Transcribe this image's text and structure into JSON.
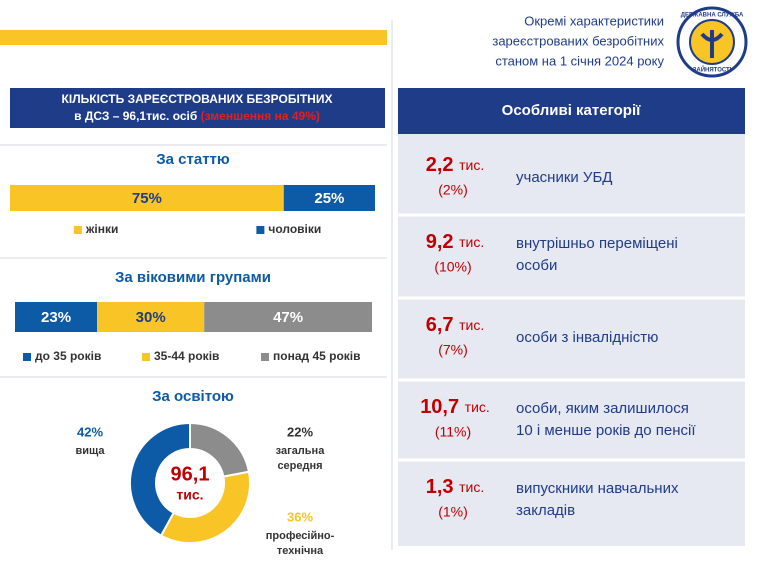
{
  "header": {
    "title_lines": [
      "Окремі характеристики",
      "зареєстрованих безробітних",
      "станом на 1 січня 2024 року"
    ],
    "logo_top": "ДЕРЖАВНА СЛУЖБА",
    "logo_bottom": "ЗАЙНЯТОСТІ"
  },
  "summary": {
    "line1": "КІЛЬКІСТЬ ЗАРЕЄСТРОВАНИХ БЕЗРОБІТНИХ",
    "line2": "в ДСЗ – 96,1тис. осіб",
    "note": "(зменшення на 49%)"
  },
  "chart_data": [
    {
      "type": "stacked_bar",
      "title": "За статтю",
      "xlim": [
        0,
        100
      ],
      "series": [
        {
          "name": "жінки",
          "color": "#f9c425",
          "values": [
            75
          ],
          "value_labels": [
            "75%"
          ]
        },
        {
          "name": "чоловіки",
          "color": "#0d5aa7",
          "values": [
            25
          ],
          "value_labels": [
            "25%"
          ]
        }
      ]
    },
    {
      "type": "stacked_bar",
      "title": "За віковими групами",
      "xlim": [
        0,
        100
      ],
      "series": [
        {
          "name": "до 35 років",
          "color": "#0d5aa7",
          "values": [
            23
          ],
          "value_labels": [
            "23%"
          ]
        },
        {
          "name": "35-44 років",
          "color": "#f9c425",
          "values": [
            30
          ],
          "value_labels": [
            "30%"
          ]
        },
        {
          "name": "понад 45 років",
          "color": "#8c8c8c",
          "values": [
            47
          ],
          "value_labels": [
            "47%"
          ]
        }
      ]
    },
    {
      "type": "pie",
      "title": "За освітою",
      "center_label": [
        "96,1",
        "тис."
      ],
      "categories": [
        "загальна середня",
        "професійно-технічна",
        "вища"
      ],
      "values": [
        22,
        36,
        42
      ],
      "value_labels": [
        "22%",
        "36%",
        "42%"
      ],
      "colors": [
        "#8c8c8c",
        "#f9c425",
        "#0d5aa7"
      ]
    }
  ],
  "categories_panel": {
    "title": "Особливі категорії",
    "rows": [
      {
        "count": "2,2",
        "unit": "тис.",
        "share": "(2%)",
        "label": [
          "учасники УБД"
        ]
      },
      {
        "count": "9,2",
        "unit": "тис.",
        "share": "(10%)",
        "label": [
          "внутрішньо переміщені",
          "особи"
        ]
      },
      {
        "count": "6,7",
        "unit": "тис.",
        "share": "(7%)",
        "label": [
          "особи з інвалідністю"
        ]
      },
      {
        "count": "10,7",
        "unit": "тис.",
        "share": "(11%)",
        "label": [
          "особи, яким залишилося",
          "10 і менше років до пенсії"
        ]
      },
      {
        "count": "1,3",
        "unit": "тис.",
        "share": "(1%)",
        "label": [
          "випускники навчальних",
          "закладів"
        ]
      }
    ]
  }
}
